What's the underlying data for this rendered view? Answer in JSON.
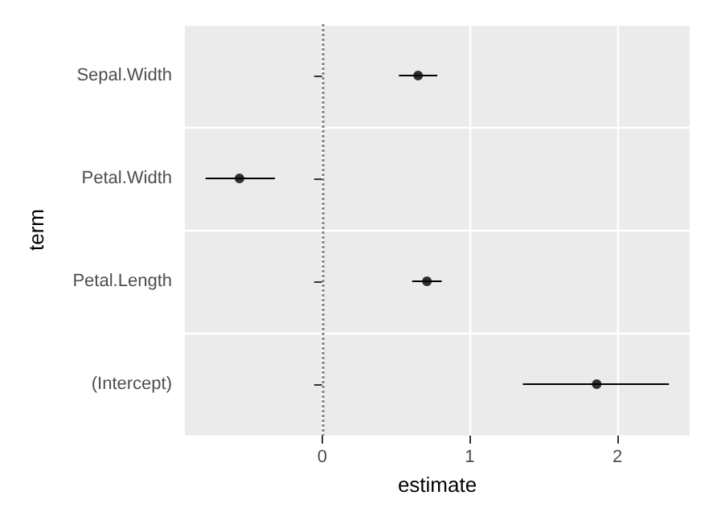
{
  "chart_data": {
    "type": "scatter",
    "xlabel": "estimate",
    "ylabel": "term",
    "categories": [
      "Sepal.Width",
      "Petal.Width",
      "Petal.Length",
      "(Intercept)"
    ],
    "orientation": "horizontal",
    "series": [
      {
        "color": "#000000",
        "values": [
          0.65,
          -0.56,
          0.71,
          1.86
        ],
        "errors": [
          [
            0.52,
            0.78
          ],
          [
            -0.79,
            -0.32
          ],
          [
            0.61,
            0.81
          ],
          [
            1.36,
            2.35
          ]
        ]
      }
    ],
    "xlim": [
      -0.93,
      2.49
    ],
    "xticks": [
      0,
      1,
      2
    ],
    "grid": true,
    "marker": "circle",
    "ref_lines": [
      {
        "axis": "x",
        "value": 0,
        "color": "#7f7f7f",
        "line_style": "dotted"
      }
    ]
  }
}
